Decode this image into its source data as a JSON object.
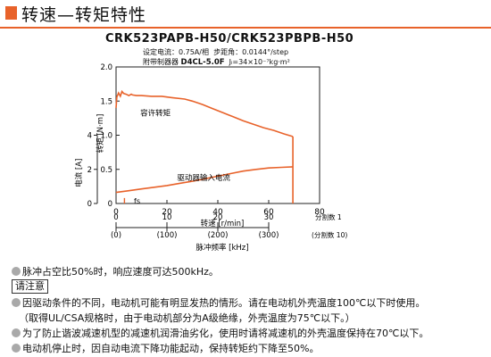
{
  "header": {
    "title": "转速—转矩特性",
    "accent_color": "#e8622a"
  },
  "model": "CRK523PAPB-H50/CRK523PBPB-H50",
  "specs": {
    "line1_a": "设定电流：0.75A/相",
    "line1_b": "步距角：0.0144°/step",
    "line2_driver_label": "附带制器器",
    "line2_driver_model": "D4CL-5.0F",
    "line2_inertia": "Jₗ=34×10⁻⁷kg·m²"
  },
  "chart_data": {
    "type": "line",
    "xlabel": "转速 [r/min]",
    "x_ticks": [
      0,
      20,
      40,
      60,
      80
    ],
    "xlim": [
      0,
      80
    ],
    "ylabel_left": "转矩 [N·m]",
    "y_ticks_left": [
      0,
      0.5,
      1.0,
      1.5,
      2.0
    ],
    "y_tick_labels_left": [
      "0",
      "0.5",
      "1.0",
      "1.5",
      "2.0"
    ],
    "ylim_left": [
      0,
      2.0
    ],
    "ylabel_current": "电流 [A]",
    "current_ticks": [
      0,
      2,
      4
    ],
    "current_ylim": [
      0,
      8
    ],
    "freq_axis": {
      "label": "脉冲频率 [kHz]",
      "ticks_pulse": [
        "0",
        "10",
        "20",
        "30"
      ],
      "ticks_division": [
        "(0)",
        "(100)",
        "(200)",
        "(300)"
      ],
      "ticks_speed": [
        0,
        20,
        40,
        60
      ],
      "unit_pulse": "分割数 1",
      "unit_division": "(分割数 10)"
    },
    "series": [
      {
        "name": "容许转矩",
        "color": "#e8622a",
        "x": [
          0,
          0.3,
          1,
          1.7,
          2.3,
          3,
          4,
          5,
          6,
          6.5,
          8,
          10,
          14,
          18,
          22,
          27,
          30,
          34,
          38,
          42,
          46,
          50,
          54,
          58,
          62,
          66,
          69.5
        ],
        "y": [
          1.4,
          1.56,
          1.62,
          1.57,
          1.64,
          1.61,
          1.6,
          1.58,
          1.6,
          1.59,
          1.58,
          1.58,
          1.57,
          1.57,
          1.55,
          1.53,
          1.5,
          1.45,
          1.39,
          1.33,
          1.27,
          1.21,
          1.16,
          1.11,
          1.07,
          1.02,
          0.98
        ]
      },
      {
        "name": "驱动器输入电流",
        "color": "#e8622a",
        "x": [
          0,
          5,
          10,
          15,
          20,
          25,
          30,
          35,
          40,
          45,
          50,
          55,
          60,
          65,
          69.5
        ],
        "y_current": [
          0.65,
          0.75,
          0.85,
          0.95,
          1.05,
          1.18,
          1.3,
          1.45,
          1.6,
          1.75,
          1.9,
          2.0,
          2.08,
          2.12,
          2.15
        ]
      }
    ],
    "drop_line": {
      "x": 69.5,
      "from_torque": 0.98
    },
    "start_marker": {
      "label": "fs",
      "x": 3.3,
      "y": 0.08
    },
    "annotations": [
      "容许转矩",
      "驱动器输入电流",
      "fs"
    ],
    "grid": false
  },
  "notes": {
    "bullet1": "脉冲占空比50%时，响应速度可达500kHz。",
    "caution_label": "请注意",
    "bullet2": "因驱动条件的不同，电动机可能有明显发热的情形。请在电动机外壳温度100℃以下时使用。",
    "bullet2_cont": "（取得UL/CSA规格时，由于电动机部分为A级绝缘，外壳温度为75℃以下。）",
    "bullet3": "为了防止谐波减速机型的减速机润滑油劣化，使用时请将减速机的外壳温度保持在70℃以下。",
    "bullet4": "电动机停止时，因自动电流下降功能起动，保持转矩约下降至50%。",
    "bullet_color": "#a9a9a9"
  }
}
